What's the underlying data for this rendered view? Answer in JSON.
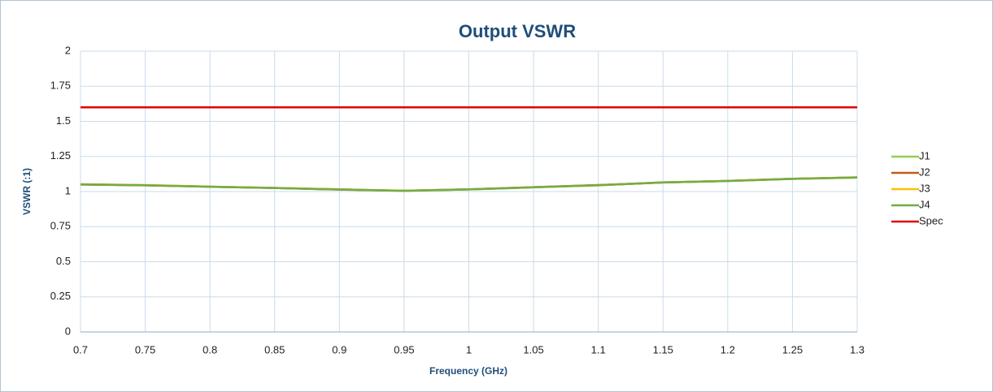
{
  "chart_data": {
    "type": "line",
    "title": "Output VSWR",
    "x_label": "Frequency (GHz)",
    "y_label": "VSWR (:1)",
    "x": [
      0.7,
      0.75,
      0.8,
      0.85,
      0.9,
      0.95,
      1.0,
      1.05,
      1.1,
      1.15,
      1.2,
      1.25,
      1.3
    ],
    "series": [
      {
        "name": "J1",
        "color": "#92d050",
        "values": [
          1.05,
          1.045,
          1.035,
          1.025,
          1.015,
          1.005,
          1.015,
          1.03,
          1.045,
          1.065,
          1.075,
          1.09,
          1.1
        ]
      },
      {
        "name": "J2",
        "color": "#c55a11",
        "values": [
          1.05,
          1.044,
          1.034,
          1.025,
          1.014,
          1.006,
          1.016,
          1.031,
          1.046,
          1.064,
          1.076,
          1.091,
          1.101
        ]
      },
      {
        "name": "J3",
        "color": "#ffc000",
        "values": [
          1.052,
          1.046,
          1.035,
          1.026,
          1.016,
          1.006,
          1.015,
          1.03,
          1.044,
          1.066,
          1.075,
          1.09,
          1.1
        ]
      },
      {
        "name": "J4",
        "color": "#70ad47",
        "values": [
          1.051,
          1.045,
          1.034,
          1.025,
          1.015,
          1.005,
          1.015,
          1.03,
          1.045,
          1.065,
          1.075,
          1.09,
          1.1
        ]
      },
      {
        "name": "Spec",
        "color": "#e00000",
        "values": [
          1.6,
          1.6,
          1.6,
          1.6,
          1.6,
          1.6,
          1.6,
          1.6,
          1.6,
          1.6,
          1.6,
          1.6,
          1.6
        ]
      }
    ],
    "xlim": [
      0.7,
      1.3
    ],
    "xticks": [
      0.7,
      0.75,
      0.8,
      0.85,
      0.9,
      0.95,
      1,
      1.05,
      1.1,
      1.15,
      1.2,
      1.25,
      1.3
    ],
    "ylim": [
      0,
      2
    ],
    "yticks": [
      0,
      0.25,
      0.5,
      0.75,
      1,
      1.25,
      1.5,
      1.75,
      2
    ],
    "grid": true,
    "legend": "right"
  }
}
